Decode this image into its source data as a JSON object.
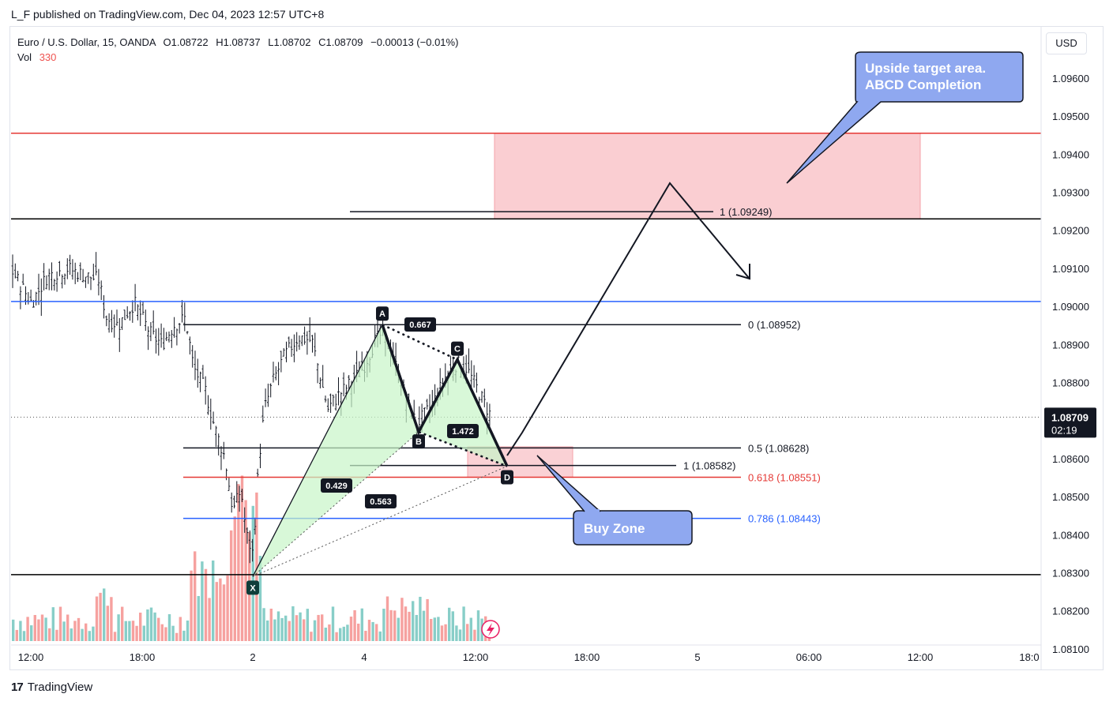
{
  "header": {
    "publisher": "L_F published on TradingView.com, Dec 04, 2023 12:57 UTC+8"
  },
  "legend": {
    "symbol": "Euro / U.S. Dollar, 15, OANDA",
    "open": "O1.08722",
    "high": "H1.08737",
    "low": "L1.08702",
    "close": "C1.08709",
    "change": "−0.00013 (−0.01%)",
    "vol_label": "Vol",
    "vol_value": "330"
  },
  "currency_button": "USD",
  "footer": {
    "brand": "TradingView",
    "logo": "17"
  },
  "colors": {
    "up": "#26a69a",
    "down": "#ef5350",
    "blue": "#2962ff",
    "red_line": "#e53935",
    "target_zone": "#f9c6ca",
    "callout_fill": "#8fa8f0",
    "triangle_fill": "#c8f5c8"
  },
  "chart_data": {
    "type": "candlestick",
    "symbol": "EURUSD",
    "timeframe": "15",
    "y_axis": {
      "ylim": [
        1.0805,
        1.098
      ],
      "ticks": [
        "1.09600",
        "1.09500",
        "1.09400",
        "1.09300",
        "1.09200",
        "1.09100",
        "1.09000",
        "1.08900",
        "1.08800",
        "1.08700",
        "1.08600",
        "1.08500",
        "1.08400",
        "1.08300",
        "1.08200",
        "1.08100"
      ]
    },
    "x_axis": {
      "ticks": [
        "12:00",
        "18:00",
        "2",
        "4",
        "12:00",
        "18:00",
        "5",
        "06:00",
        "12:00",
        "18:0"
      ]
    },
    "last_price": {
      "value": "1.08709",
      "countdown": "02:19"
    },
    "volume": {
      "current": 330
    },
    "horizontal_lines": [
      {
        "price": 1.09455,
        "color": "#e53935"
      },
      {
        "price": 1.0923,
        "color": "#000000"
      },
      {
        "price": 1.09013,
        "color": "#2962ff"
      },
      {
        "price": 1.08295,
        "color": "#000000"
      }
    ],
    "fib_retracement": [
      {
        "label": "0 (1.08952)",
        "level": 1.08952,
        "color": "#131722"
      },
      {
        "label": "0.5 (1.08628)",
        "level": 1.08628,
        "color": "#131722"
      },
      {
        "label": "0.618 (1.08551)",
        "level": 1.08551,
        "color": "#e53935"
      },
      {
        "label": "0.786 (1.08443)",
        "level": 1.08443,
        "color": "#2962ff"
      }
    ],
    "fib_extension": [
      {
        "label": "1 (1.09249)",
        "level": 1.09249
      },
      {
        "label": "1 (1.08582)",
        "level": 1.08582
      }
    ],
    "xabcd_pattern": {
      "points": [
        {
          "label": "X",
          "price": 1.0829
        },
        {
          "label": "A",
          "price": 1.08952
        },
        {
          "label": "B",
          "price": 1.0867
        },
        {
          "label": "C",
          "price": 1.0886
        },
        {
          "label": "D",
          "price": 1.0858
        }
      ],
      "ratios": [
        "0.667",
        "1.472",
        "0.429",
        "0.563"
      ]
    },
    "annotations": [
      {
        "text_lines": [
          "Upside target area.",
          "ABCD Completion"
        ]
      },
      {
        "text_lines": [
          "Buy Zone"
        ]
      }
    ]
  }
}
